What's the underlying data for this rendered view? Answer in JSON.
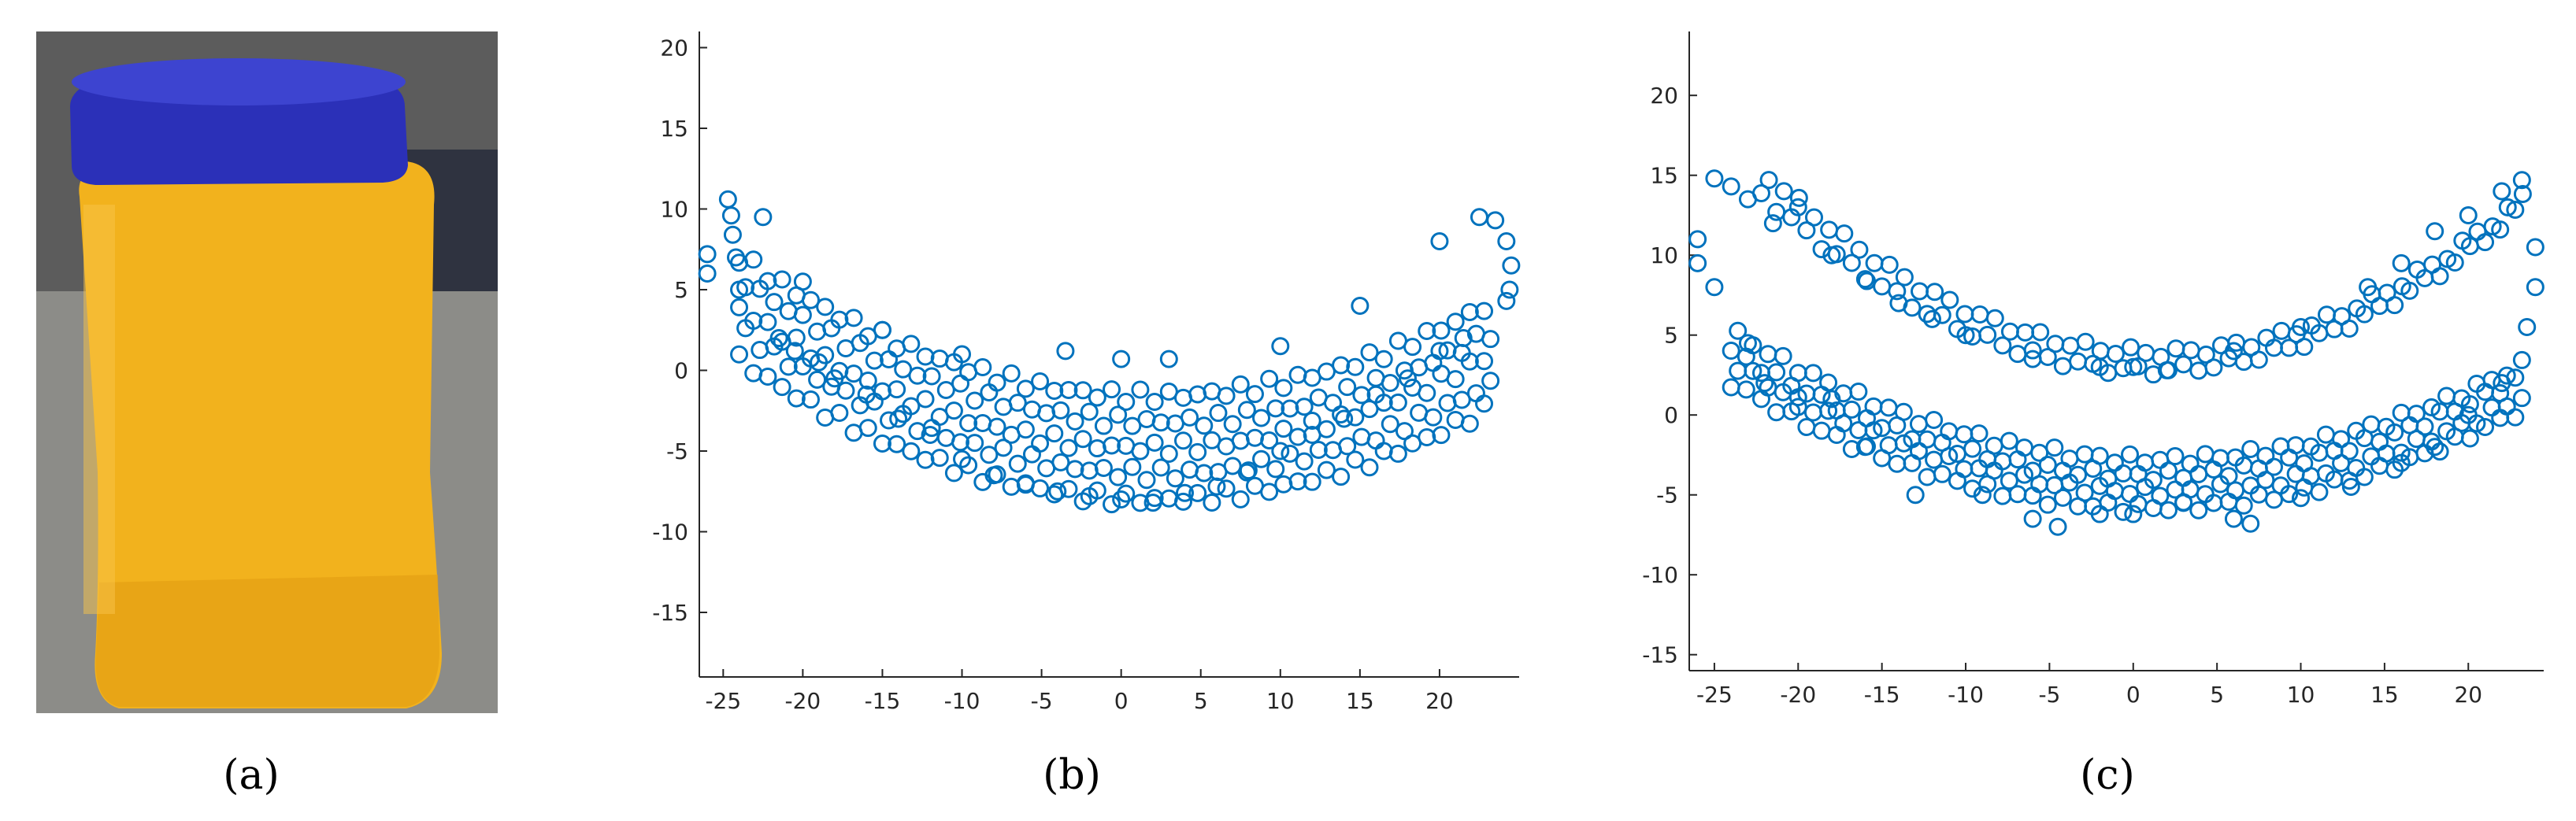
{
  "panels": {
    "a": "(a)",
    "b": "(b)",
    "c": "(c)"
  },
  "colors": {
    "marker": "#0072bd",
    "axis": "#262626",
    "bottle_body": "#f2b21d",
    "bottle_cap": "#2b30b8"
  },
  "chart_data": [
    {
      "panel": "b",
      "type": "scatter",
      "marker": "open-circle",
      "xlim": [
        -26.5,
        25
      ],
      "ylim": [
        -19,
        21
      ],
      "xticks": [
        -25,
        -20,
        -15,
        -10,
        -5,
        0,
        5,
        10,
        15,
        20
      ],
      "yticks": [
        -15,
        -10,
        -5,
        0,
        5,
        10,
        15,
        20
      ],
      "grid": false,
      "series": [
        {
          "shape": "upward parabolic band of open circles",
          "x_range": [
            -26,
            24
          ],
          "y_min_at_x": 2,
          "y_min": -8.2,
          "y_max": 10.6,
          "points": [
            [
              -26,
              7.2
            ],
            [
              -26,
              6.0
            ],
            [
              -24.7,
              10.6
            ],
            [
              -24.5,
              9.6
            ],
            [
              -24.4,
              8.4
            ],
            [
              -24.2,
              7.0
            ],
            [
              -24.0,
              5.0
            ],
            [
              -22.5,
              9.5
            ],
            [
              -21.5,
              2.0
            ],
            [
              -20.5,
              1.2
            ],
            [
              -19,
              0.5
            ],
            [
              -18,
              -0.5
            ],
            [
              -16,
              -1.5
            ],
            [
              -14,
              -3.0
            ],
            [
              -12,
              -4.0
            ],
            [
              -10,
              -5.5
            ],
            [
              -8,
              -6.5
            ],
            [
              -6,
              -7.0
            ],
            [
              -4,
              -7.5
            ],
            [
              -2,
              -7.8
            ],
            [
              0,
              -8.0
            ],
            [
              2,
              -8.2
            ],
            [
              4,
              -7.6
            ],
            [
              6,
              -7.2
            ],
            [
              8,
              -6.2
            ],
            [
              10,
              -5.0
            ],
            [
              12,
              -4.0
            ],
            [
              14,
              -3.0
            ],
            [
              16,
              -1.5
            ],
            [
              18,
              -0.5
            ],
            [
              20,
              1.2
            ],
            [
              21.5,
              2.0
            ],
            [
              22.5,
              9.5
            ],
            [
              23.5,
              9.3
            ],
            [
              24.2,
              8.0
            ],
            [
              24.5,
              6.5
            ],
            [
              24.4,
              5.0
            ],
            [
              24.2,
              4.3
            ],
            [
              -3.5,
              1.2
            ],
            [
              0,
              0.7
            ],
            [
              3,
              0.7
            ],
            [
              -10,
              1.0
            ],
            [
              10,
              1.5
            ],
            [
              -15,
              2.5
            ],
            [
              15,
              4.0
            ],
            [
              -20,
              5.5
            ],
            [
              20,
              8.0
            ]
          ]
        }
      ]
    },
    {
      "panel": "c",
      "type": "scatter",
      "marker": "open-circle",
      "xlim": [
        -26.5,
        24.5
      ],
      "ylim": [
        -16,
        24
      ],
      "xticks": [
        -25,
        -20,
        -15,
        -10,
        -5,
        0,
        5,
        10,
        15,
        20
      ],
      "yticks": [
        -15,
        -10,
        -5,
        0,
        5,
        10,
        15,
        20
      ],
      "grid": false,
      "series": [
        {
          "shape": "two upward parabolic bands of open circles (upper outer band and lower dense band)",
          "x_range": [
            -26,
            24
          ],
          "y_min": -7.0,
          "y_max": 14.8,
          "points": [
            [
              -26,
              11.0
            ],
            [
              -26,
              9.5
            ],
            [
              -25,
              14.8
            ],
            [
              -24,
              14.3
            ],
            [
              -23,
              13.5
            ],
            [
              -21.5,
              12.0
            ],
            [
              -20,
              13.0
            ],
            [
              -18,
              10.0
            ],
            [
              -16,
              8.5
            ],
            [
              -14,
              7.0
            ],
            [
              -12,
              6.0
            ],
            [
              -10,
              5.0
            ],
            [
              -6,
              3.5
            ],
            [
              -2,
              3.0
            ],
            [
              0,
              3.0
            ],
            [
              2,
              2.8
            ],
            [
              6,
              4.0
            ],
            [
              10,
              5.5
            ],
            [
              14,
              8.0
            ],
            [
              16,
              9.5
            ],
            [
              18,
              11.5
            ],
            [
              20,
              12.5
            ],
            [
              22,
              14.0
            ],
            [
              23.2,
              14.7
            ],
            [
              24,
              10.5
            ],
            [
              24,
              8.0
            ],
            [
              -22,
              2.0
            ],
            [
              -20,
              0.5
            ],
            [
              -16,
              -2.0
            ],
            [
              -13,
              -5.0
            ],
            [
              -9,
              -5.0
            ],
            [
              -6,
              -6.5
            ],
            [
              -4.5,
              -7.0
            ],
            [
              -2,
              -6.2
            ],
            [
              0,
              -6.2
            ],
            [
              3,
              -5.5
            ],
            [
              6,
              -6.5
            ],
            [
              7,
              -6.8
            ],
            [
              10,
              -5.2
            ],
            [
              13,
              -4.5
            ],
            [
              16,
              -3.0
            ],
            [
              18,
              -2.0
            ],
            [
              20,
              0.0
            ],
            [
              22,
              2.0
            ],
            [
              23.5,
              5.5
            ],
            [
              -25,
              8.0
            ],
            [
              -23,
              4.5
            ],
            [
              -18,
              1.0
            ]
          ]
        }
      ]
    }
  ]
}
